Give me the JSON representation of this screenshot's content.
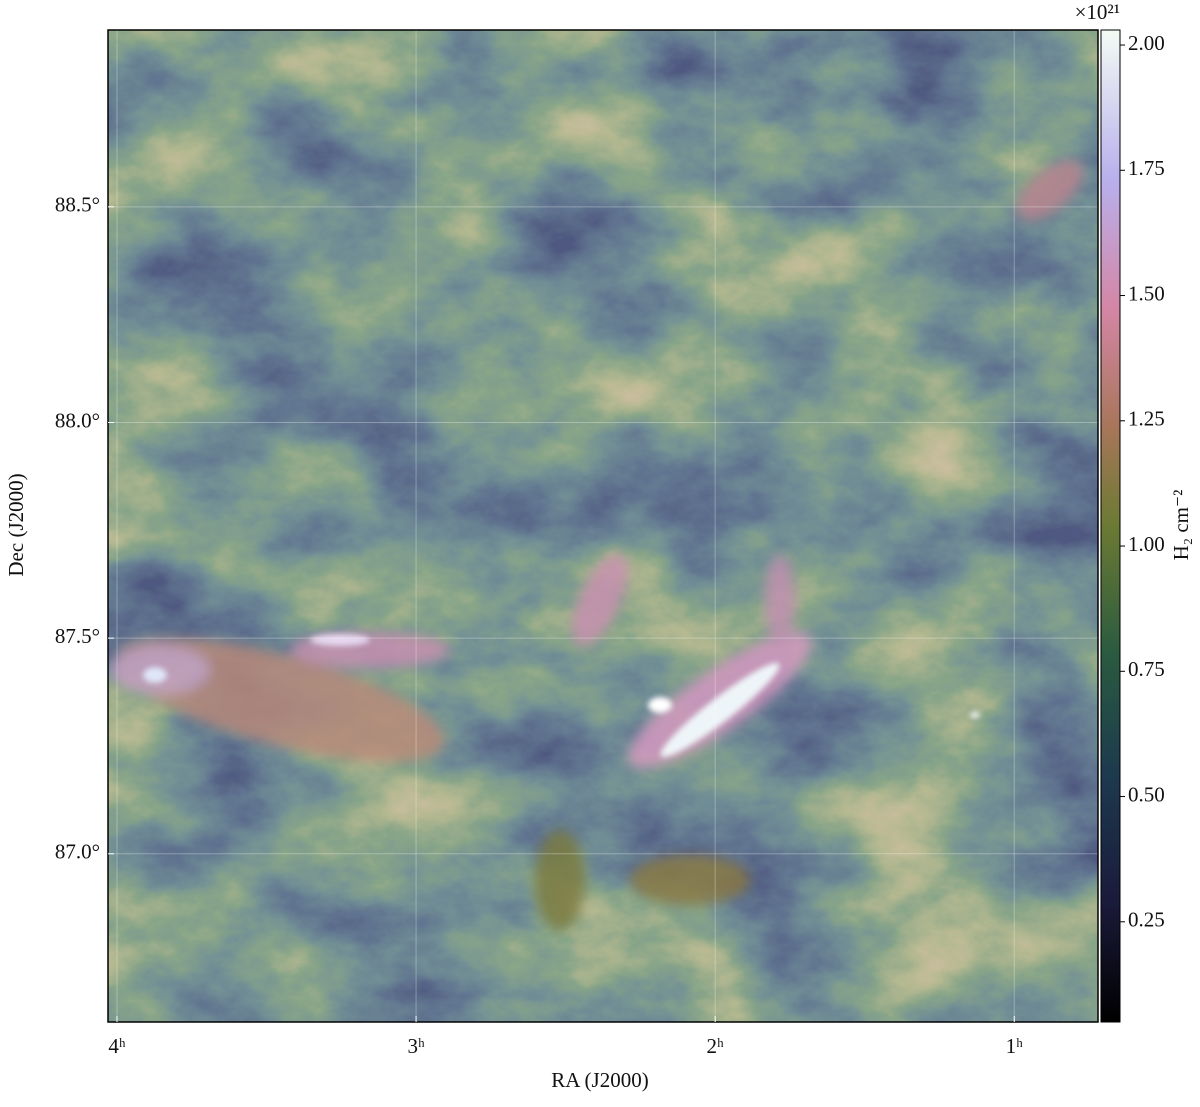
{
  "chart_data": {
    "type": "image",
    "xlabel": "RA (J2000)",
    "ylabel": "Dec (J2000)",
    "xlim": [
      4.03,
      0.72
    ],
    "xticks": [
      {
        "value": 4,
        "label": "4ʰ"
      },
      {
        "value": 3,
        "label": "3ʰ"
      },
      {
        "value": 2,
        "label": "2ʰ"
      },
      {
        "value": 1,
        "label": "1ʰ"
      }
    ],
    "ylim": [
      86.61,
      88.91
    ],
    "yticks": [
      {
        "value": 88.5,
        "label": "88.5°"
      },
      {
        "value": 88.0,
        "label": "88.0°"
      },
      {
        "value": 87.5,
        "label": "87.5°"
      },
      {
        "value": 87.0,
        "label": "87.0°"
      }
    ],
    "grid": true,
    "colorbar": {
      "label": "H₂ cm⁻²",
      "multiplier": "×10²¹",
      "lim": [
        0.05,
        2.03
      ],
      "ticks": [
        0.25,
        {
          "value": 0.5,
          "label": "0.50"
        },
        0.75,
        {
          "value": 1.0,
          "label": "1.00"
        },
        1.25,
        {
          "value": 1.5,
          "label": "1.50"
        },
        1.75,
        {
          "value": 2.0,
          "label": "2.00"
        }
      ]
    }
  }
}
